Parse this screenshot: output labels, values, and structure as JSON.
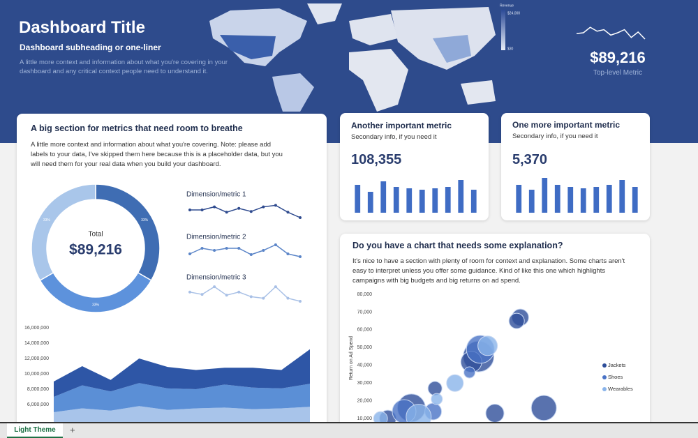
{
  "header": {
    "title": "Dashboard Title",
    "subtitle": "Dashboard subheading or one-liner",
    "description": "A little more context and information about what you're covering in your dashboard and any critical context people need to understand it."
  },
  "map_legend": {
    "title": "Revenue",
    "max_label": "$24,000",
    "min_label": "$30"
  },
  "top_metric": {
    "value": "$89,216",
    "label": "Top-level Metric"
  },
  "cards": [
    {
      "title": "A big section for metrics that need room to breathe",
      "description": "A little more context and information about what you're covering. Note: please add labels to your data, I've skipped them here because this is a placeholder data, but you will need them for your real data when you build your dashboard."
    },
    {
      "title": "Another important metric",
      "subtitle": "Secondary info, if you need it",
      "value": "108,355"
    },
    {
      "title": "One more important metric",
      "subtitle": "Secondary info, if you need it",
      "value": "5,370"
    },
    {
      "title": "Do you have a chart that needs some explanation?",
      "description": "It's nice to have a section with plenty of room for context and explanation. Some charts aren't easy to interpret unless you offer some guidance. Kind of like this one which highlights campaigns with big budgets and big returns on ad spend."
    }
  ],
  "chart_data": [
    {
      "type": "line",
      "values": [
        7,
        8,
        15,
        10,
        12,
        5,
        8,
        12,
        2,
        9,
        0
      ],
      "color": "#ffffff",
      "ylim": [
        0,
        16
      ],
      "markers": false
    },
    {
      "type": "donut",
      "center_label": "Total",
      "center_value": "$89,216",
      "values": [
        33,
        33,
        33
      ],
      "value_labels": [
        "33%",
        "33%",
        "33%"
      ],
      "colors": [
        "#3f6db3",
        "#5d92dc",
        "#a9c6ea"
      ]
    },
    {
      "type": "line",
      "title": "Dimension/metric 1",
      "values": [
        10,
        10,
        14,
        7,
        12,
        8,
        14,
        16,
        7,
        0
      ],
      "color": "#2f4b8f",
      "ylim": [
        0,
        20
      ],
      "markers": true
    },
    {
      "type": "line",
      "title": "Dimension/metric 2",
      "values": [
        8,
        16,
        13,
        16,
        16,
        7,
        13,
        21,
        8,
        4
      ],
      "color": "#5b85c8",
      "ylim": [
        0,
        24
      ],
      "markers": true
    },
    {
      "type": "line",
      "title": "Dimension/metric 3",
      "values": [
        12,
        9,
        19,
        8,
        12,
        6,
        4,
        19,
        4,
        0
      ],
      "color": "#a8c0e6",
      "ylim": [
        0,
        20
      ],
      "markers": true
    },
    {
      "type": "area",
      "stacked": true,
      "series": [
        {
          "color": "#a8c4ea",
          "values": [
            5000000,
            5500000,
            5200000,
            5800000,
            5300000,
            5500000,
            5600000,
            5400000,
            5500000,
            5700000
          ]
        },
        {
          "color": "#5b8fd6",
          "values": [
            2000000,
            3000000,
            2500000,
            3000000,
            2800000,
            2500000,
            3000000,
            2800000,
            2600000,
            3000000
          ]
        },
        {
          "color": "#2e56a6",
          "values": [
            2000000,
            2500000,
            1500000,
            3200000,
            2800000,
            2500000,
            2200000,
            2600000,
            2400000,
            4500000
          ]
        }
      ],
      "ylim": [
        0,
        16000000
      ],
      "yticks": [
        {
          "value": 6000000,
          "label": "6,000,000"
        },
        {
          "value": 8000000,
          "label": "8,000,000"
        },
        {
          "value": 10000000,
          "label": "10,000,000"
        },
        {
          "value": 12000000,
          "label": "12,000,000"
        },
        {
          "value": 14000000,
          "label": "14,000,000"
        },
        {
          "value": 16000000,
          "label": "16,000,000"
        }
      ]
    },
    {
      "type": "bar",
      "values": [
        40,
        30,
        45,
        37,
        35,
        33,
        35,
        37,
        47,
        33
      ],
      "color": "#3f6cc4",
      "ylim": [
        0,
        50
      ]
    },
    {
      "type": "bar",
      "values": [
        40,
        33,
        50,
        40,
        37,
        35,
        37,
        40,
        47,
        37
      ],
      "color": "#3f6cc4",
      "ylim": [
        0,
        50
      ]
    },
    {
      "type": "scatter",
      "ylabel": "Return on Ad Spend",
      "legend": "right",
      "xlim": [
        0,
        100
      ],
      "ylim": [
        0,
        80000
      ],
      "yticks": [
        {
          "value": 10000,
          "label": "10,000"
        },
        {
          "value": 20000,
          "label": "20,000"
        },
        {
          "value": 30000,
          "label": "30,000"
        },
        {
          "value": 40000,
          "label": "40,000"
        },
        {
          "value": 50000,
          "label": "50,000"
        },
        {
          "value": 60000,
          "label": "60,000"
        },
        {
          "value": 70000,
          "label": "70,000"
        },
        {
          "value": 80000,
          "label": "80,000"
        }
      ],
      "series": [
        {
          "name": "Jackets",
          "color": "#2f4f9a",
          "x": [
            79,
            77,
            56,
            52,
            65,
            92,
            19,
            6,
            32
          ],
          "values": [
            67000,
            65000,
            45000,
            42000,
            13000,
            16000,
            16000,
            10000,
            27000
          ],
          "sizes": [
            12,
            11,
            22,
            15,
            13,
            18,
            20,
            12,
            10
          ]
        },
        {
          "name": "Shoes",
          "color": "#4a73c6",
          "x": [
            57,
            15,
            51,
            31
          ],
          "values": [
            49000,
            14000,
            36000,
            14000
          ],
          "sizes": [
            20,
            17,
            8,
            12
          ]
        },
        {
          "name": "Wearables",
          "color": "#8ab4ea",
          "x": [
            61,
            43,
            23,
            2,
            33
          ],
          "values": [
            51000,
            30000,
            11000,
            10000,
            21000
          ],
          "sizes": [
            14,
            12,
            18,
            10,
            8
          ]
        }
      ]
    }
  ],
  "sheet_tabs": {
    "active": "Light Theme",
    "add": "+"
  }
}
